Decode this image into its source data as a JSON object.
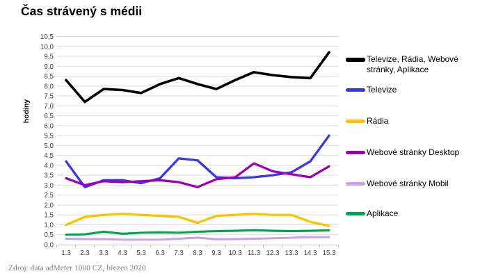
{
  "title": "Čas strávený s médii",
  "source": "Zdroj: data adMeter 1000 CZ, březen 2020",
  "colors": {
    "gridline": "#dcdcdc",
    "axis": "#c0c0c0",
    "tick_text": "#404040"
  },
  "chart_data": {
    "type": "line",
    "title": "Čas strávený s médii",
    "xlabel": "",
    "ylabel": "hodiny",
    "ylim": [
      0,
      10.5
    ],
    "y_step": 0.5,
    "grid": true,
    "legend_position": "right",
    "categories": [
      "1.3",
      "2.3",
      "3.3",
      "4.3",
      "5.3",
      "6.3",
      "7.3",
      "8.3",
      "9.3",
      "10.3",
      "11.3",
      "12.3",
      "13.3",
      "14.3",
      "15.3"
    ],
    "y_ticks": [
      "0,0",
      "0,5",
      "1,0",
      "1,5",
      "2,0",
      "2,5",
      "3,0",
      "3,5",
      "4,0",
      "4,5",
      "5,0",
      "5,5",
      "6,0",
      "6,5",
      "7,0",
      "7,5",
      "8,0",
      "8,5",
      "9,0",
      "9,5",
      "10,0",
      "10,5"
    ],
    "series": [
      {
        "name": "Televize, Rádia, Webové stránky, Aplikace",
        "color": "#000000",
        "stroke_width": 3.6,
        "values": [
          8.3,
          7.2,
          7.85,
          7.8,
          7.65,
          8.1,
          8.4,
          8.1,
          7.85,
          8.3,
          8.7,
          8.55,
          8.45,
          8.4,
          9.7
        ]
      },
      {
        "name": "Televize",
        "color": "#3539e3",
        "stroke_width": 3.3,
        "values": [
          4.2,
          2.9,
          3.25,
          3.25,
          3.1,
          3.35,
          4.35,
          4.25,
          3.4,
          3.35,
          3.4,
          3.5,
          3.65,
          4.2,
          5.5
        ]
      },
      {
        "name": "Rádia",
        "color": "#ffc000",
        "stroke_width": 3.3,
        "values": [
          1.0,
          1.4,
          1.5,
          1.55,
          1.5,
          1.45,
          1.4,
          1.1,
          1.45,
          1.5,
          1.55,
          1.5,
          1.5,
          1.15,
          0.95
        ]
      },
      {
        "name": "Webové stránky Desktop",
        "color": "#9d00b8",
        "stroke_width": 3.3,
        "values": [
          3.35,
          3.0,
          3.2,
          3.15,
          3.2,
          3.25,
          3.15,
          2.9,
          3.3,
          3.4,
          4.1,
          3.7,
          3.55,
          3.4,
          3.95
        ]
      },
      {
        "name": "Webové stránky Mobil",
        "color": "#c8a4e6",
        "stroke_width": 3.1,
        "values": [
          0.3,
          0.28,
          0.28,
          0.25,
          0.25,
          0.25,
          0.3,
          0.35,
          0.27,
          0.28,
          0.3,
          0.32,
          0.35,
          0.38,
          0.38
        ]
      },
      {
        "name": "Aplikace",
        "color": "#00a350",
        "stroke_width": 3.1,
        "values": [
          0.5,
          0.52,
          0.65,
          0.55,
          0.6,
          0.62,
          0.6,
          0.65,
          0.68,
          0.7,
          0.73,
          0.7,
          0.68,
          0.7,
          0.72
        ]
      }
    ]
  }
}
